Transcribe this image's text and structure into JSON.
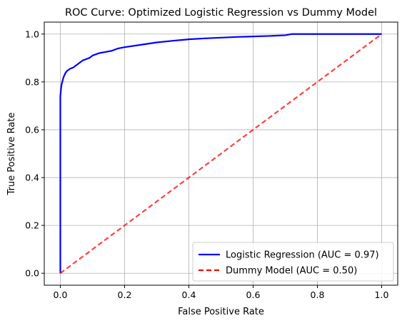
{
  "chart_data": {
    "type": "line",
    "title": "ROC Curve: Optimized Logistic Regression vs Dummy Model",
    "xlabel": "False Positive Rate",
    "ylabel": "True Positive Rate",
    "xlim": [
      -0.05,
      1.05
    ],
    "ylim": [
      -0.05,
      1.05
    ],
    "xticks": [
      "0.0",
      "0.2",
      "0.4",
      "0.6",
      "0.8",
      "1.0"
    ],
    "yticks": [
      "0.0",
      "0.2",
      "0.4",
      "0.6",
      "0.8",
      "1.0"
    ],
    "grid": true,
    "legend_position": "lower-right",
    "series": [
      {
        "name": "Logistic Regression (AUC = 0.97)",
        "color": "#0000ff",
        "style": "solid",
        "x": [
          0,
          0,
          0.002,
          0.004,
          0.006,
          0.008,
          0.01,
          0.015,
          0.02,
          0.03,
          0.04,
          0.05,
          0.06,
          0.07,
          0.08,
          0.09,
          0.1,
          0.12,
          0.14,
          0.16,
          0.18,
          0.2,
          0.25,
          0.3,
          0.35,
          0.4,
          0.45,
          0.5,
          0.55,
          0.6,
          0.65,
          0.7,
          0.72,
          0.8,
          0.9,
          1.0
        ],
        "y": [
          0,
          0.74,
          0.77,
          0.79,
          0.8,
          0.81,
          0.82,
          0.835,
          0.845,
          0.855,
          0.86,
          0.87,
          0.88,
          0.89,
          0.895,
          0.9,
          0.91,
          0.92,
          0.925,
          0.93,
          0.94,
          0.945,
          0.955,
          0.965,
          0.972,
          0.978,
          0.982,
          0.985,
          0.988,
          0.99,
          0.992,
          0.995,
          1.0,
          1.0,
          1.0,
          1.0
        ]
      },
      {
        "name": "Dummy Model (AUC = 0.50)",
        "color": "#ff0000",
        "style": "dashed",
        "x": [
          0,
          1
        ],
        "y": [
          0,
          1
        ]
      }
    ]
  }
}
